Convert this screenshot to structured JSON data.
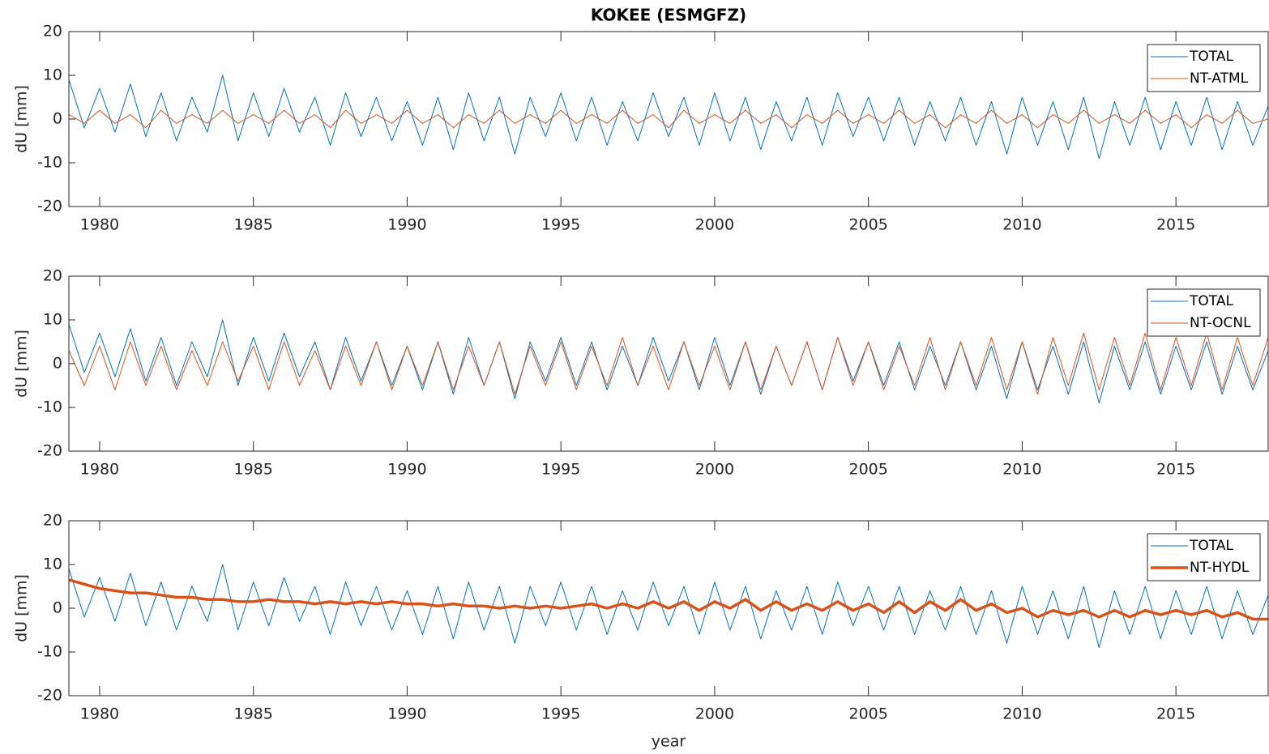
{
  "chart_data": [
    {
      "type": "line",
      "title": "KOKEE (ESMGFZ)",
      "ylabel": "dU [mm]",
      "legend": "upper right",
      "xlim": [
        1979,
        2018
      ],
      "xticks": [
        1980,
        1985,
        1990,
        1995,
        2000,
        2005,
        2010,
        2015
      ],
      "ylim": [
        -20,
        20
      ],
      "yticks": [
        -20,
        -10,
        0,
        10,
        20
      ],
      "x": [
        1979,
        1979.5,
        1980,
        1980.5,
        1981,
        1981.5,
        1982,
        1982.5,
        1983,
        1983.5,
        1984,
        1984.5,
        1985,
        1985.5,
        1986,
        1986.5,
        1987,
        1987.5,
        1988,
        1988.5,
        1989,
        1989.5,
        1990,
        1990.5,
        1991,
        1991.5,
        1992,
        1992.5,
        1993,
        1993.5,
        1994,
        1994.5,
        1995,
        1995.5,
        1996,
        1996.5,
        1997,
        1997.5,
        1998,
        1998.5,
        1999,
        1999.5,
        2000,
        2000.5,
        2001,
        2001.5,
        2002,
        2002.5,
        2003,
        2003.5,
        2004,
        2004.5,
        2005,
        2005.5,
        2006,
        2006.5,
        2007,
        2007.5,
        2008,
        2008.5,
        2009,
        2009.5,
        2010,
        2010.5,
        2011,
        2011.5,
        2012,
        2012.5,
        2013,
        2013.5,
        2014,
        2014.5,
        2015,
        2015.5,
        2016,
        2016.5,
        2017,
        2017.5,
        2018
      ],
      "series": [
        {
          "name": "TOTAL",
          "color": "#0072bd",
          "line_width": 1,
          "values": [
            9,
            -2,
            7,
            -3,
            8,
            -4,
            6,
            -5,
            5,
            -3,
            10,
            -5,
            6,
            -4,
            7,
            -3,
            5,
            -6,
            6,
            -4,
            5,
            -5,
            4,
            -6,
            5,
            -7,
            6,
            -5,
            5,
            -8,
            5,
            -4,
            6,
            -5,
            5,
            -6,
            4,
            -5,
            6,
            -4,
            5,
            -6,
            6,
            -5,
            5,
            -7,
            4,
            -5,
            5,
            -6,
            6,
            -4,
            5,
            -5,
            5,
            -6,
            4,
            -5,
            5,
            -6,
            4,
            -8,
            5,
            -6,
            4,
            -7,
            5,
            -9,
            4,
            -6,
            5,
            -7,
            4,
            -6,
            5,
            -7,
            4,
            -6,
            3
          ]
        },
        {
          "name": "NT-ATML",
          "color": "#d95319",
          "line_width": 1,
          "values": [
            1,
            -1,
            2,
            -1,
            1,
            -2,
            2,
            -1,
            1,
            -1,
            2,
            -1,
            1,
            -1,
            2,
            -1,
            1,
            -2,
            2,
            -1,
            1,
            -1,
            2,
            -1,
            1,
            -2,
            1,
            -1,
            2,
            -1,
            1,
            -1,
            2,
            -1,
            1,
            -1,
            2,
            -1,
            1,
            -2,
            2,
            -1,
            1,
            -1,
            2,
            -1,
            1,
            -2,
            1,
            -1,
            2,
            -1,
            1,
            -1,
            2,
            -1,
            1,
            -2,
            1,
            -1,
            2,
            -1,
            1,
            -2,
            1,
            -1,
            2,
            -1,
            1,
            -1,
            2,
            -1,
            1,
            -2,
            1,
            -1,
            2,
            -1,
            0
          ]
        }
      ]
    },
    {
      "type": "line",
      "ylabel": "dU [mm]",
      "legend": "upper right",
      "xlim": [
        1979,
        2018
      ],
      "xticks": [
        1980,
        1985,
        1990,
        1995,
        2000,
        2005,
        2010,
        2015
      ],
      "ylim": [
        -20,
        20
      ],
      "yticks": [
        -20,
        -10,
        0,
        10,
        20
      ],
      "x": [
        1979,
        1979.5,
        1980,
        1980.5,
        1981,
        1981.5,
        1982,
        1982.5,
        1983,
        1983.5,
        1984,
        1984.5,
        1985,
        1985.5,
        1986,
        1986.5,
        1987,
        1987.5,
        1988,
        1988.5,
        1989,
        1989.5,
        1990,
        1990.5,
        1991,
        1991.5,
        1992,
        1992.5,
        1993,
        1993.5,
        1994,
        1994.5,
        1995,
        1995.5,
        1996,
        1996.5,
        1997,
        1997.5,
        1998,
        1998.5,
        1999,
        1999.5,
        2000,
        2000.5,
        2001,
        2001.5,
        2002,
        2002.5,
        2003,
        2003.5,
        2004,
        2004.5,
        2005,
        2005.5,
        2006,
        2006.5,
        2007,
        2007.5,
        2008,
        2008.5,
        2009,
        2009.5,
        2010,
        2010.5,
        2011,
        2011.5,
        2012,
        2012.5,
        2013,
        2013.5,
        2014,
        2014.5,
        2015,
        2015.5,
        2016,
        2016.5,
        2017,
        2017.5,
        2018
      ],
      "series": [
        {
          "name": "TOTAL",
          "color": "#0072bd",
          "line_width": 1,
          "values": [
            9,
            -2,
            7,
            -3,
            8,
            -4,
            6,
            -5,
            5,
            -3,
            10,
            -5,
            6,
            -4,
            7,
            -3,
            5,
            -6,
            6,
            -4,
            5,
            -5,
            4,
            -6,
            5,
            -7,
            6,
            -5,
            5,
            -8,
            5,
            -4,
            6,
            -5,
            5,
            -6,
            4,
            -5,
            6,
            -4,
            5,
            -6,
            6,
            -5,
            5,
            -7,
            4,
            -5,
            5,
            -6,
            6,
            -4,
            5,
            -5,
            5,
            -6,
            4,
            -5,
            5,
            -6,
            4,
            -8,
            5,
            -6,
            4,
            -7,
            5,
            -9,
            4,
            -6,
            5,
            -7,
            4,
            -6,
            5,
            -7,
            4,
            -6,
            3
          ]
        },
        {
          "name": "NT-OCNL",
          "color": "#d95319",
          "line_width": 1,
          "values": [
            3,
            -5,
            4,
            -6,
            5,
            -5,
            4,
            -6,
            3,
            -5,
            5,
            -4,
            4,
            -6,
            5,
            -5,
            3,
            -6,
            4,
            -5,
            5,
            -6,
            4,
            -5,
            5,
            -6,
            4,
            -5,
            5,
            -7,
            4,
            -5,
            5,
            -6,
            4,
            -5,
            6,
            -5,
            4,
            -6,
            5,
            -5,
            4,
            -6,
            5,
            -6,
            4,
            -5,
            5,
            -6,
            6,
            -5,
            5,
            -6,
            4,
            -5,
            6,
            -6,
            5,
            -5,
            6,
            -6,
            5,
            -7,
            6,
            -5,
            7,
            -6,
            6,
            -5,
            7,
            -6,
            6,
            -5,
            7,
            -6,
            6,
            -5,
            6
          ]
        }
      ]
    },
    {
      "type": "line",
      "ylabel": "dU [mm]",
      "xlabel": "year",
      "legend": "upper right",
      "xlim": [
        1979,
        2018
      ],
      "xticks": [
        1980,
        1985,
        1990,
        1995,
        2000,
        2005,
        2010,
        2015
      ],
      "ylim": [
        -20,
        20
      ],
      "yticks": [
        -20,
        -10,
        0,
        10,
        20
      ],
      "x": [
        1979,
        1979.5,
        1980,
        1980.5,
        1981,
        1981.5,
        1982,
        1982.5,
        1983,
        1983.5,
        1984,
        1984.5,
        1985,
        1985.5,
        1986,
        1986.5,
        1987,
        1987.5,
        1988,
        1988.5,
        1989,
        1989.5,
        1990,
        1990.5,
        1991,
        1991.5,
        1992,
        1992.5,
        1993,
        1993.5,
        1994,
        1994.5,
        1995,
        1995.5,
        1996,
        1996.5,
        1997,
        1997.5,
        1998,
        1998.5,
        1999,
        1999.5,
        2000,
        2000.5,
        2001,
        2001.5,
        2002,
        2002.5,
        2003,
        2003.5,
        2004,
        2004.5,
        2005,
        2005.5,
        2006,
        2006.5,
        2007,
        2007.5,
        2008,
        2008.5,
        2009,
        2009.5,
        2010,
        2010.5,
        2011,
        2011.5,
        2012,
        2012.5,
        2013,
        2013.5,
        2014,
        2014.5,
        2015,
        2015.5,
        2016,
        2016.5,
        2017,
        2017.5,
        2018
      ],
      "series": [
        {
          "name": "TOTAL",
          "color": "#0072bd",
          "line_width": 1,
          "values": [
            9,
            -2,
            7,
            -3,
            8,
            -4,
            6,
            -5,
            5,
            -3,
            10,
            -5,
            6,
            -4,
            7,
            -3,
            5,
            -6,
            6,
            -4,
            5,
            -5,
            4,
            -6,
            5,
            -7,
            6,
            -5,
            5,
            -8,
            5,
            -4,
            6,
            -5,
            5,
            -6,
            4,
            -5,
            6,
            -4,
            5,
            -6,
            6,
            -5,
            5,
            -7,
            4,
            -5,
            5,
            -6,
            6,
            -4,
            5,
            -5,
            5,
            -6,
            4,
            -5,
            5,
            -6,
            4,
            -8,
            5,
            -6,
            4,
            -7,
            5,
            -9,
            4,
            -6,
            5,
            -7,
            4,
            -6,
            5,
            -7,
            4,
            -6,
            3
          ]
        },
        {
          "name": "NT-HYDL",
          "color": "#d95319",
          "line_width": 3.5,
          "values": [
            6.5,
            5.5,
            4.5,
            4,
            3.5,
            3.5,
            3,
            2.5,
            2.5,
            2,
            2,
            1.5,
            1.5,
            2,
            1.5,
            1.5,
            1,
            1.5,
            1,
            1.5,
            1,
            1.5,
            1,
            1,
            0.5,
            1,
            0.5,
            0.5,
            0,
            0.5,
            0,
            0.5,
            0,
            0.5,
            1,
            0,
            1,
            0,
            1.5,
            0,
            1.5,
            -0.5,
            1.5,
            0,
            2,
            -0.5,
            1.5,
            -0.5,
            1,
            -0.5,
            1.5,
            -0.5,
            1,
            -1,
            1.5,
            -1,
            1.5,
            -0.5,
            2,
            -0.5,
            1,
            -1,
            0,
            -2,
            -0.5,
            -1.5,
            -0.5,
            -2,
            -0.5,
            -2,
            -0.5,
            -1.5,
            -0.5,
            -1.5,
            -0.5,
            -2,
            -1,
            -2.5,
            -2.5
          ]
        }
      ]
    }
  ]
}
